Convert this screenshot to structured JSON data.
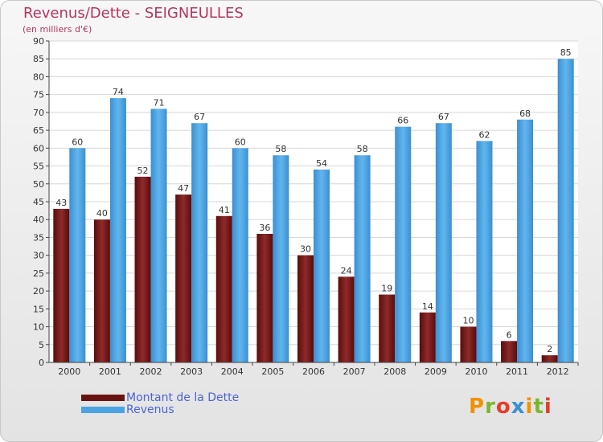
{
  "header": {
    "title": "Revenus/Dette - SEIGNEULLES",
    "subtitle": "(en milliers d'€)"
  },
  "legend": {
    "items": [
      {
        "label": "Montant de la Dette",
        "color": "#7a1a1a"
      },
      {
        "label": "Revenus",
        "color": "#4aa3e3"
      }
    ]
  },
  "logo": {
    "text": "Proxiti"
  },
  "chart_data": {
    "type": "bar",
    "title": "Revenus/Dette - SEIGNEULLES",
    "categories": [
      "2000",
      "2001",
      "2002",
      "2003",
      "2004",
      "2005",
      "2006",
      "2007",
      "2008",
      "2009",
      "2010",
      "2011",
      "2012"
    ],
    "series": [
      {
        "name": "Montant de la Dette",
        "color": "#7a1a1a",
        "values": [
          43,
          40,
          52,
          47,
          41,
          36,
          30,
          24,
          19,
          14,
          10,
          6,
          2
        ]
      },
      {
        "name": "Revenus",
        "color": "#4aa3e3",
        "values": [
          60,
          74,
          71,
          67,
          60,
          58,
          54,
          58,
          66,
          67,
          62,
          68,
          85
        ]
      }
    ],
    "ylim": [
      0,
      90
    ],
    "yticks": [
      0,
      5,
      10,
      15,
      20,
      25,
      30,
      35,
      40,
      45,
      50,
      55,
      60,
      65,
      70,
      75,
      80,
      85,
      90
    ],
    "grid": true,
    "legend_position": "bottom-left"
  }
}
